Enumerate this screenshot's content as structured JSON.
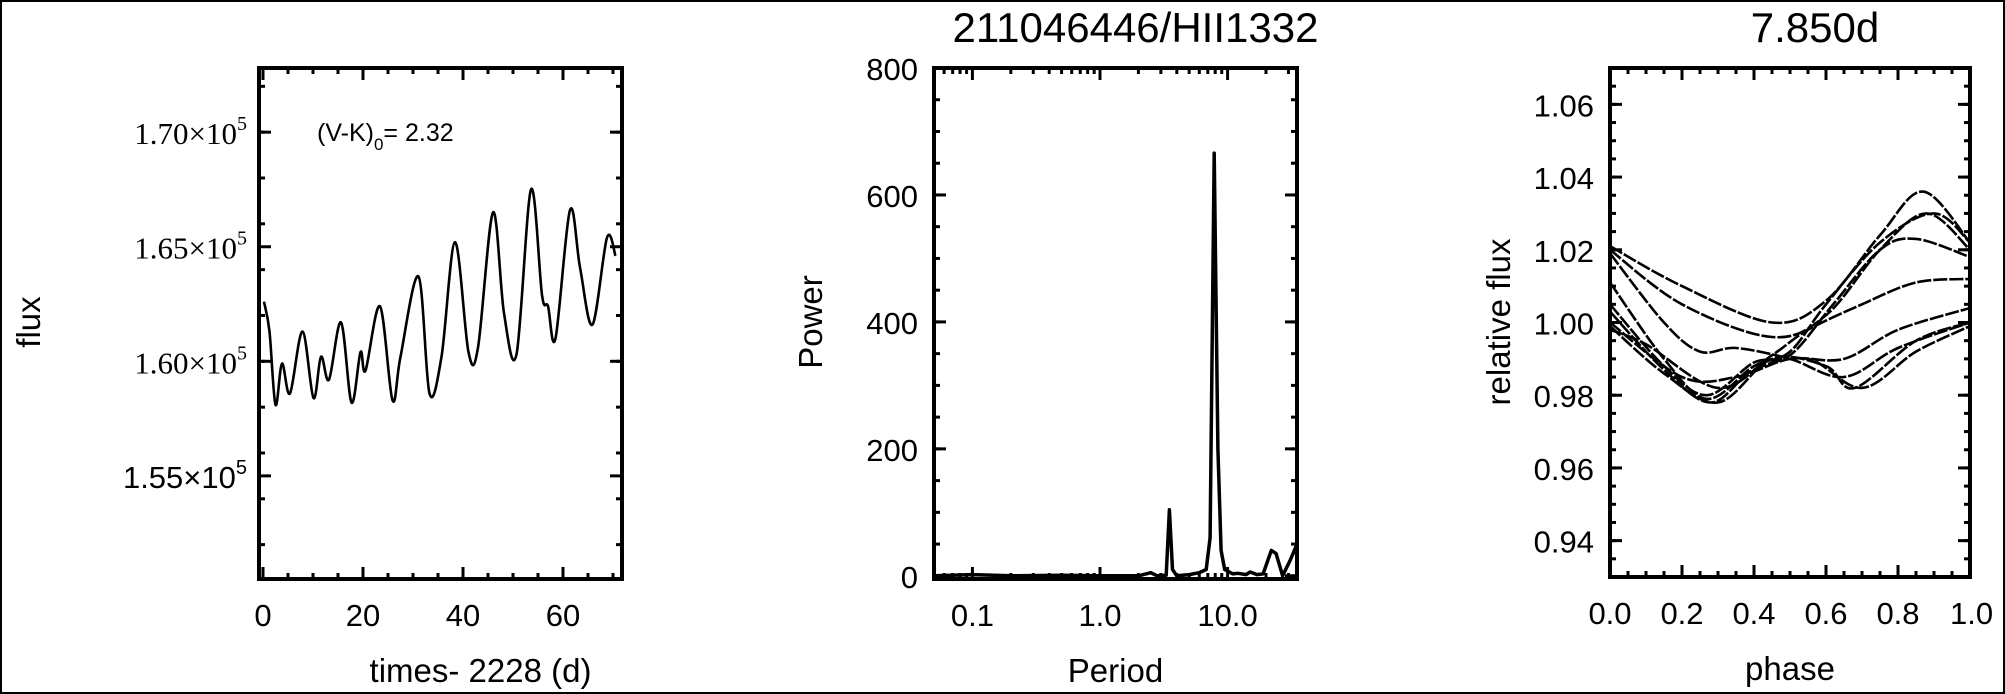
{
  "chart_data": [
    {
      "type": "line",
      "title": "",
      "xlabel": "times- 2228 (d)",
      "ylabel": "flux",
      "annotation": {
        "text": "(V-K)",
        "subscript": "0",
        "suffix": "= 2.32"
      },
      "xlim": [
        -0.8,
        71.8
      ],
      "ylim": [
        150500,
        172800
      ],
      "xticks": [
        0,
        20,
        40,
        60
      ],
      "xtick_labels": [
        "0",
        "20",
        "40",
        "60"
      ],
      "yticks": [
        155000,
        160000,
        165000,
        170000
      ],
      "ytick_labels": [
        {
          "mantissa": "1.55×10",
          "exponent": "5"
        },
        {
          "mantissa": "1.60×10",
          "exponent": "5"
        },
        {
          "mantissa": "1.65×10",
          "exponent": "5"
        },
        {
          "mantissa": "1.70×10",
          "exponent": "5"
        }
      ],
      "grid": false,
      "x": [
        0.2,
        1.3,
        2.5,
        3.8,
        5.4,
        7.9,
        10.1,
        11.6,
        13.2,
        15.6,
        17.7,
        19.5,
        20.5,
        23.4,
        25.9,
        27.5,
        31.1,
        33.3,
        35.7,
        38.4,
        41.1,
        43.0,
        46.0,
        48.2,
        50.7,
        53.6,
        55.8,
        57.0,
        58.5,
        61.4,
        63.4,
        65.9,
        68.8,
        70.5
      ],
      "y": [
        162600,
        161300,
        158100,
        159900,
        158600,
        161300,
        158400,
        160200,
        159200,
        161700,
        158200,
        160400,
        159600,
        162400,
        158300,
        160200,
        163700,
        158600,
        160200,
        165200,
        160400,
        160600,
        166500,
        162100,
        160300,
        167500,
        162900,
        162400,
        161000,
        166600,
        164100,
        161600,
        165400,
        164600
      ]
    },
    {
      "type": "line",
      "title": "211046446/HII1332",
      "xlabel": "Period",
      "ylabel": "Power",
      "xscale": "log",
      "xlim": [
        0.05,
        35
      ],
      "ylim": [
        -5,
        800
      ],
      "xticks": [
        0.1,
        1.0,
        10.0
      ],
      "xtick_labels": [
        "0.1",
        "1.0",
        "10.0"
      ],
      "yticks": [
        0,
        200,
        400,
        600,
        800
      ],
      "ytick_labels": [
        "0",
        "200",
        "400",
        "600",
        "800"
      ],
      "grid": false,
      "x": [
        0.05,
        0.1,
        0.2,
        0.5,
        1.0,
        2.0,
        2.5,
        2.8,
        3.3,
        3.5,
        3.7,
        4.0,
        5.0,
        6.0,
        6.8,
        7.3,
        7.85,
        8.4,
        8.9,
        9.5,
        11,
        12,
        14,
        15,
        17,
        19,
        22,
        24,
        27,
        31,
        35
      ],
      "y": [
        0,
        2,
        0,
        1,
        0,
        0,
        5,
        0,
        1,
        104,
        10,
        0,
        2,
        5,
        10,
        60,
        666,
        200,
        40,
        10,
        3,
        4,
        2,
        6,
        2,
        3,
        40,
        35,
        0,
        25,
        50
      ]
    },
    {
      "type": "line",
      "title": "7.850d",
      "xlabel": "phase",
      "ylabel": "relative flux",
      "xlim": [
        0,
        1
      ],
      "ylim": [
        0.93,
        1.07
      ],
      "xticks": [
        0,
        0.2,
        0.4,
        0.6,
        0.8,
        1.0
      ],
      "xtick_labels": [
        "0.0",
        "0.2",
        "0.4",
        "0.6",
        "0.8",
        "1.0"
      ],
      "yticks": [
        0.94,
        0.96,
        0.98,
        1.0,
        1.02,
        1.04,
        1.06
      ],
      "ytick_labels": [
        "0.94",
        "0.96",
        "0.98",
        "1.00",
        "1.02",
        "1.04",
        "1.06"
      ],
      "grid": false,
      "series": [
        {
          "x": [
            0,
            0.2,
            0.45,
            0.6,
            0.75,
            0.87,
            1
          ],
          "y": [
            1.021,
            1.01,
            1.0,
            1.006,
            1.024,
            1.036,
            1.022
          ]
        },
        {
          "x": [
            0,
            0.2,
            0.45,
            0.6,
            0.75,
            0.88,
            1
          ],
          "y": [
            1.02,
            1.005,
            0.996,
            1.002,
            1.02,
            1.03,
            1.02
          ]
        },
        {
          "x": [
            0,
            0.15,
            0.25,
            0.35,
            0.5,
            0.65,
            0.8,
            1
          ],
          "y": [
            1.019,
            1.0,
            0.992,
            0.993,
            0.99,
            0.985,
            0.993,
            1.0
          ]
        },
        {
          "x": [
            0,
            0.15,
            0.27,
            0.4,
            0.5,
            0.6,
            0.75,
            0.9,
            1
          ],
          "y": [
            1.011,
            0.99,
            0.979,
            0.988,
            0.992,
            1.005,
            1.022,
            1.03,
            1.022
          ]
        },
        {
          "x": [
            0,
            0.15,
            0.27,
            0.4,
            0.5,
            0.62,
            0.75,
            0.85,
            1
          ],
          "y": [
            1.005,
            0.988,
            0.98,
            0.989,
            0.991,
            1.005,
            1.02,
            1.023,
            1.018
          ]
        },
        {
          "x": [
            0,
            0.15,
            0.28,
            0.4,
            0.55,
            0.7,
            0.85,
            1
          ],
          "y": [
            1.003,
            0.987,
            0.978,
            0.987,
            0.99,
            0.982,
            0.992,
            0.999
          ]
        },
        {
          "x": [
            0,
            0.15,
            0.3,
            0.45,
            0.6,
            0.68,
            0.85,
            1
          ],
          "y": [
            0.999,
            0.986,
            0.978,
            0.99,
            0.988,
            0.982,
            0.995,
            1.0
          ]
        },
        {
          "x": [
            0,
            0.1,
            0.3,
            0.45,
            0.55,
            0.7,
            0.85,
            1
          ],
          "y": [
            0.998,
            0.994,
            0.982,
            0.991,
            0.998,
            1.005,
            1.011,
            1.012
          ]
        },
        {
          "x": [
            0,
            0.2,
            0.35,
            0.5,
            0.65,
            0.8,
            1
          ],
          "y": [
            1.0,
            0.985,
            0.985,
            0.99,
            0.99,
            0.998,
            1.004
          ]
        }
      ]
    }
  ]
}
